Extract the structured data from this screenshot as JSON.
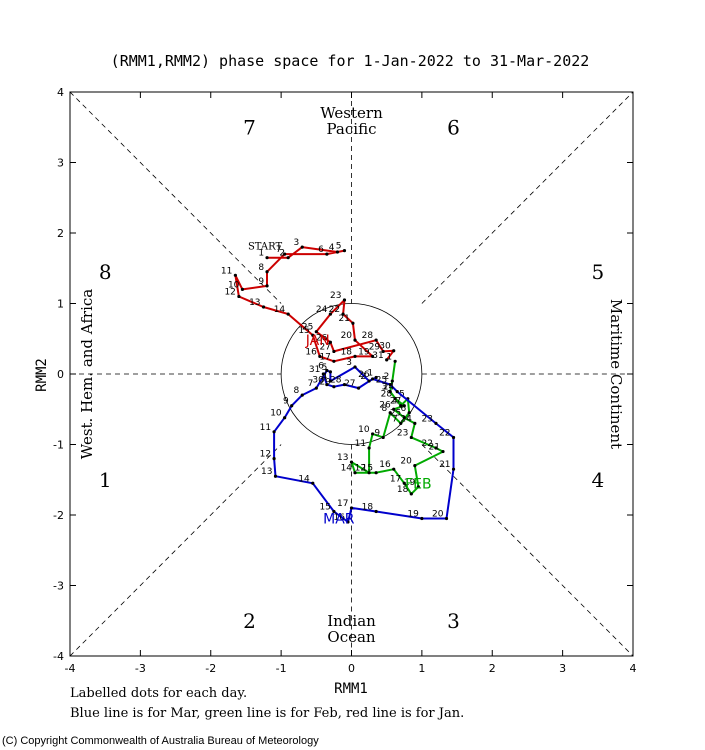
{
  "chart_data": {
    "type": "line",
    "title": "(RMM1,RMM2) phase space for  1-Jan-2022 to 31-Mar-2022",
    "xlabel": "RMM1",
    "ylabel": "RMM2",
    "xlim": [
      -4,
      4
    ],
    "ylim": [
      -4,
      4
    ],
    "ticks": [
      "-4",
      "-3",
      "-2",
      "-1",
      "0",
      "1",
      "2",
      "3",
      "4"
    ],
    "grid": false,
    "phases": [
      {
        "label": "1",
        "x": -3.5,
        "y": -1.5
      },
      {
        "label": "2",
        "x": -1.45,
        "y": -3.5
      },
      {
        "label": "3",
        "x": 1.45,
        "y": -3.5
      },
      {
        "label": "4",
        "x": 3.5,
        "y": -1.5
      },
      {
        "label": "5",
        "x": 3.5,
        "y": 1.45
      },
      {
        "label": "6",
        "x": 1.45,
        "y": 3.5
      },
      {
        "label": "7",
        "x": -1.45,
        "y": 3.5
      },
      {
        "label": "8",
        "x": -3.5,
        "y": 1.45
      }
    ],
    "regions": {
      "top": [
        "Western",
        "Pacific"
      ],
      "bottom": [
        "Indian",
        "Ocean"
      ],
      "left": "West. Hem. and Africa",
      "right": "Maritime Continent"
    },
    "start_label": "START",
    "series": [
      {
        "name": "JAN",
        "color": "#cc0000",
        "label_pos": [
          -0.48,
          0.48
        ],
        "points": [
          {
            "d": "1",
            "x": -1.2,
            "y": 1.65
          },
          {
            "d": "2",
            "x": -0.9,
            "y": 1.65
          },
          {
            "d": "3",
            "x": -0.7,
            "y": 1.8
          },
          {
            "d": "4",
            "x": -0.2,
            "y": 1.73
          },
          {
            "d": "5",
            "x": -0.1,
            "y": 1.75
          },
          {
            "d": "6",
            "x": -0.35,
            "y": 1.7
          },
          {
            "d": "7",
            "x": -0.95,
            "y": 1.7
          },
          {
            "d": "8",
            "x": -1.2,
            "y": 1.45
          },
          {
            "d": "9",
            "x": -1.2,
            "y": 1.25
          },
          {
            "d": "10",
            "x": -1.55,
            "y": 1.2
          },
          {
            "d": "11",
            "x": -1.65,
            "y": 1.4
          },
          {
            "d": "12",
            "x": -1.6,
            "y": 1.1
          },
          {
            "d": "13",
            "x": -1.25,
            "y": 0.95
          },
          {
            "d": "14",
            "x": -0.9,
            "y": 0.85
          },
          {
            "d": "15",
            "x": -0.55,
            "y": 0.55
          },
          {
            "d": "16",
            "x": -0.45,
            "y": 0.25
          },
          {
            "d": "17",
            "x": -0.25,
            "y": 0.18
          },
          {
            "d": "18",
            "x": 0.05,
            "y": 0.25
          },
          {
            "d": "19",
            "x": 0.3,
            "y": 0.25
          },
          {
            "d": "20",
            "x": 0.05,
            "y": 0.48
          },
          {
            "d": "21",
            "x": 0.02,
            "y": 0.72
          },
          {
            "d": "22",
            "x": -0.12,
            "y": 0.85
          },
          {
            "d": "23",
            "x": -0.1,
            "y": 1.05
          },
          {
            "d": "24",
            "x": -0.3,
            "y": 0.85
          },
          {
            "d": "25",
            "x": -0.5,
            "y": 0.6
          },
          {
            "d": "26",
            "x": -0.3,
            "y": 0.45
          },
          {
            "d": "27",
            "x": -0.25,
            "y": 0.32
          },
          {
            "d": "28",
            "x": 0.35,
            "y": 0.48
          },
          {
            "d": "29",
            "x": 0.45,
            "y": 0.32
          },
          {
            "d": "30",
            "x": 0.6,
            "y": 0.33
          },
          {
            "d": "31",
            "x": 0.5,
            "y": 0.2
          }
        ]
      },
      {
        "name": "FEB",
        "color": "#00aa00",
        "label_pos": [
          0.95,
          -1.55
        ],
        "points": [
          {
            "d": "1",
            "x": 0.62,
            "y": 0.18
          },
          {
            "d": "2",
            "x": 0.58,
            "y": -0.1
          },
          {
            "d": "3",
            "x": 0.55,
            "y": -0.25
          },
          {
            "d": "4",
            "x": 0.7,
            "y": -0.45
          },
          {
            "d": "5",
            "x": 0.8,
            "y": -0.35
          },
          {
            "d": "6",
            "x": 0.82,
            "y": -0.55
          },
          {
            "d": "7",
            "x": 0.7,
            "y": -0.7
          },
          {
            "d": "8",
            "x": 0.55,
            "y": -0.55
          },
          {
            "d": "9",
            "x": 0.45,
            "y": -0.9
          },
          {
            "d": "10",
            "x": 0.3,
            "y": -0.85
          },
          {
            "d": "11",
            "x": 0.25,
            "y": -1.05
          },
          {
            "d": "12",
            "x": 0.25,
            "y": -1.4
          },
          {
            "d": "13",
            "x": 0.0,
            "y": -1.25
          },
          {
            "d": "14",
            "x": 0.05,
            "y": -1.4
          },
          {
            "d": "15",
            "x": 0.35,
            "y": -1.4
          },
          {
            "d": "16",
            "x": 0.6,
            "y": -1.35
          },
          {
            "d": "17",
            "x": 0.75,
            "y": -1.55
          },
          {
            "d": "18",
            "x": 0.85,
            "y": -1.7
          },
          {
            "d": "19",
            "x": 0.95,
            "y": -1.6
          },
          {
            "d": "20",
            "x": 0.9,
            "y": -1.3
          },
          {
            "d": "21",
            "x": 1.3,
            "y": -1.1
          },
          {
            "d": "22",
            "x": 1.2,
            "y": -1.05
          },
          {
            "d": "23",
            "x": 0.85,
            "y": -0.9
          },
          {
            "d": "24",
            "x": 0.9,
            "y": -0.7
          },
          {
            "d": "25",
            "x": 0.75,
            "y": -0.62
          },
          {
            "d": "26",
            "x": 0.6,
            "y": -0.5
          },
          {
            "d": "27",
            "x": 0.75,
            "y": -0.45
          },
          {
            "d": "28",
            "x": 0.62,
            "y": -0.35
          }
        ]
      },
      {
        "name": "MAR",
        "color": "#0000cc",
        "label_pos": [
          -0.18,
          -2.05
        ],
        "points": [
          {
            "d": "1",
            "x": 0.35,
            "y": -0.05
          },
          {
            "d": "2",
            "x": 0.25,
            "y": -0.1
          },
          {
            "d": "3",
            "x": 0.05,
            "y": 0.1
          },
          {
            "d": "4",
            "x": -0.3,
            "y": -0.1
          },
          {
            "d": "5",
            "x": -0.3,
            "y": 0.03
          },
          {
            "d": "6",
            "x": -0.35,
            "y": 0.05
          },
          {
            "d": "7",
            "x": -0.5,
            "y": -0.2
          },
          {
            "d": "8",
            "x": -0.7,
            "y": -0.3
          },
          {
            "d": "9",
            "x": -0.85,
            "y": -0.45
          },
          {
            "d": "10",
            "x": -0.95,
            "y": -0.62
          },
          {
            "d": "11",
            "x": -1.1,
            "y": -0.82
          },
          {
            "d": "12",
            "x": -1.1,
            "y": -1.2
          },
          {
            "d": "13",
            "x": -1.08,
            "y": -1.45
          },
          {
            "d": "14",
            "x": -0.55,
            "y": -1.55
          },
          {
            "d": "15",
            "x": -0.25,
            "y": -1.95
          },
          {
            "d": "16",
            "x": -0.05,
            "y": -2.1
          },
          {
            "d": "17",
            "x": 0.0,
            "y": -1.9
          },
          {
            "d": "18",
            "x": 0.35,
            "y": -1.95
          },
          {
            "d": "19",
            "x": 1.0,
            "y": -2.05
          },
          {
            "d": "20",
            "x": 1.35,
            "y": -2.05
          },
          {
            "d": "21",
            "x": 1.45,
            "y": -1.35
          },
          {
            "d": "22",
            "x": 1.45,
            "y": -0.9
          },
          {
            "d": "23",
            "x": 1.2,
            "y": -0.7
          },
          {
            "d": "24",
            "x": 0.65,
            "y": -0.25
          },
          {
            "d": "25",
            "x": 0.55,
            "y": -0.15
          },
          {
            "d": "26",
            "x": 0.3,
            "y": -0.07
          },
          {
            "d": "27",
            "x": 0.1,
            "y": -0.2
          },
          {
            "d": "28",
            "x": -0.1,
            "y": -0.15
          },
          {
            "d": "29",
            "x": -0.25,
            "y": -0.18
          },
          {
            "d": "30",
            "x": -0.35,
            "y": -0.15
          },
          {
            "d": "31",
            "x": -0.4,
            "y": 0.0
          }
        ]
      }
    ]
  },
  "notes": {
    "line1": "Labelled dots for each day.",
    "line2": "Blue line is for Mar, green line is for Feb, red line is for Jan."
  },
  "copyright": "(C) Copyright Commonwealth of Australia Bureau of Meteorology"
}
